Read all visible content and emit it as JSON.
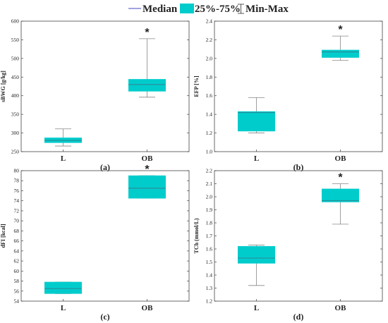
{
  "legend": {
    "median_label": "Median",
    "iqr_label": "25%-75%",
    "range_label": "Min-Max"
  },
  "colors": {
    "box_fill": "#00cccc",
    "median": "#2b8f9a",
    "whisker": "#888888",
    "legend_median_line": "#6a6ad0"
  },
  "chart_data": [
    {
      "type": "box",
      "panel_label": "(a)",
      "ylabel": "sBWG [g/kg]",
      "ylim": [
        250,
        600
      ],
      "yticks": [
        250,
        300,
        350,
        400,
        450,
        500,
        550,
        600
      ],
      "categories": [
        "L",
        "OB"
      ],
      "boxes": [
        {
          "min": 265,
          "q1": 274,
          "median": 280,
          "q3": 287,
          "max": 311
        },
        {
          "min": 396,
          "q1": 412,
          "median": 430,
          "q3": 444,
          "max": 553
        }
      ],
      "annotations": [
        {
          "category": "OB",
          "text": "*"
        }
      ]
    },
    {
      "type": "box",
      "panel_label": "(b)",
      "ylabel": "EFP [%]",
      "ylim": [
        1.0,
        2.4
      ],
      "yticks": [
        1.0,
        1.2,
        1.4,
        1.6,
        1.8,
        2.0,
        2.2,
        2.4
      ],
      "categories": [
        "L",
        "OB"
      ],
      "boxes": [
        {
          "min": 1.2,
          "q1": 1.22,
          "median": 1.42,
          "q3": 1.43,
          "max": 1.58
        },
        {
          "min": 1.98,
          "q1": 2.01,
          "median": 2.07,
          "q3": 2.09,
          "max": 2.24
        }
      ],
      "annotations": [
        {
          "category": "OB",
          "text": "*"
        }
      ]
    },
    {
      "type": "box",
      "panel_label": "(c)",
      "ylabel": "dFI [kcal]",
      "ylim": [
        54,
        80
      ],
      "yticks": [
        54,
        56,
        58,
        60,
        62,
        64,
        66,
        68,
        70,
        72,
        74,
        76,
        78,
        80
      ],
      "categories": [
        "L",
        "OB"
      ],
      "boxes": [
        {
          "min": 55.5,
          "q1": 55.5,
          "median": 56.5,
          "q3": 57.8,
          "max": 57.8
        },
        {
          "min": 74.5,
          "q1": 74.5,
          "median": 76.5,
          "q3": 79.0,
          "max": 79.0
        }
      ],
      "annotations": [
        {
          "category": "OB",
          "text": "*"
        }
      ]
    },
    {
      "type": "box",
      "panel_label": "(d)",
      "ylabel": "TCh (mmol/L)",
      "ylim": [
        1.2,
        2.2
      ],
      "yticks": [
        1.2,
        1.3,
        1.4,
        1.5,
        1.6,
        1.7,
        1.8,
        1.9,
        2.0,
        2.1,
        2.2
      ],
      "categories": [
        "L",
        "OB"
      ],
      "boxes": [
        {
          "min": 1.32,
          "q1": 1.49,
          "median": 1.53,
          "q3": 1.62,
          "max": 1.63
        },
        {
          "min": 1.79,
          "q1": 1.96,
          "median": 1.97,
          "q3": 2.06,
          "max": 2.1
        }
      ],
      "annotations": [
        {
          "category": "OB",
          "text": "*"
        }
      ]
    }
  ]
}
